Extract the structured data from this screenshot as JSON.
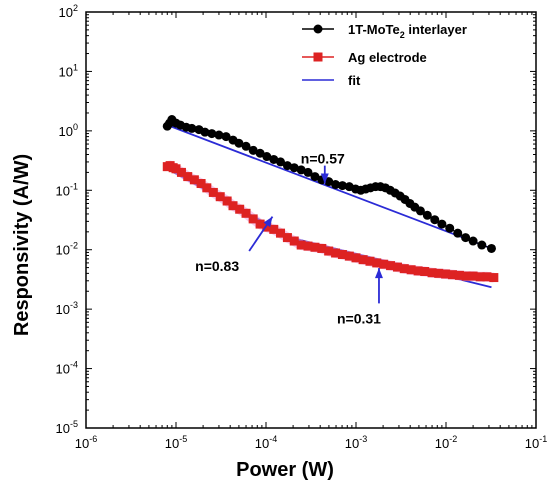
{
  "chart_data": {
    "type": "scatter",
    "title": "",
    "xlabel": "Power (W)",
    "ylabel": "Responsivity (A/W)",
    "xscale": "log",
    "yscale": "log",
    "xlim": [
      1e-06,
      0.1
    ],
    "ylim": [
      1e-05,
      100
    ],
    "x_ticks": [
      {
        "base": "10",
        "exp": "-6",
        "value": 1e-06
      },
      {
        "base": "10",
        "exp": "-5",
        "value": 1e-05
      },
      {
        "base": "10",
        "exp": "-4",
        "value": 0.0001
      },
      {
        "base": "10",
        "exp": "-3",
        "value": 0.001
      },
      {
        "base": "10",
        "exp": "-2",
        "value": 0.01
      },
      {
        "base": "10",
        "exp": "-1",
        "value": 0.1
      }
    ],
    "y_ticks": [
      {
        "base": "10",
        "exp": "-5",
        "value": 1e-05
      },
      {
        "base": "10",
        "exp": "-4",
        "value": 0.0001
      },
      {
        "base": "10",
        "exp": "-3",
        "value": 0.001
      },
      {
        "base": "10",
        "exp": "-2",
        "value": 0.01
      },
      {
        "base": "10",
        "exp": "-1",
        "value": 0.1
      },
      {
        "base": "10",
        "exp": "0",
        "value": 1
      },
      {
        "base": "10",
        "exp": "1",
        "value": 10
      },
      {
        "base": "10",
        "exp": "2",
        "value": 100
      }
    ],
    "grid": false,
    "legend_position": "top-right",
    "series": [
      {
        "name_main": "1T-MoTe",
        "name_sub": "2",
        "name_rest": " interlayer",
        "marker": "circle",
        "color": "#000000",
        "x": [
          8e-06,
          8.5e-06,
          9e-06,
          1e-05,
          1.12e-05,
          1.3e-05,
          1.5e-05,
          1.8e-05,
          2.1e-05,
          2.5e-05,
          3e-05,
          3.6e-05,
          4.3e-05,
          5e-05,
          6e-05,
          7.2e-05,
          8.6e-05,
          0.000102,
          0.000122,
          0.000145,
          0.000173,
          0.000206,
          0.000246,
          0.000293,
          0.00035,
          0.000417,
          0.000497,
          0.000593,
          0.000707,
          0.000843,
          0.00099,
          0.00113,
          0.00128,
          0.00145,
          0.00165,
          0.00187,
          0.00212,
          0.0024,
          0.00272,
          0.00309,
          0.0035,
          0.00397,
          0.0045,
          0.0052,
          0.0062,
          0.0075,
          0.009,
          0.011,
          0.0135,
          0.0165,
          0.02,
          0.025,
          0.032
        ],
        "y": [
          1.2,
          1.35,
          1.55,
          1.35,
          1.25,
          1.15,
          1.1,
          1.05,
          0.95,
          0.9,
          0.85,
          0.8,
          0.7,
          0.62,
          0.55,
          0.47,
          0.42,
          0.37,
          0.33,
          0.3,
          0.26,
          0.24,
          0.22,
          0.2,
          0.17,
          0.15,
          0.14,
          0.125,
          0.12,
          0.115,
          0.105,
          0.1,
          0.105,
          0.11,
          0.115,
          0.115,
          0.11,
          0.1,
          0.09,
          0.08,
          0.07,
          0.06,
          0.052,
          0.045,
          0.038,
          0.032,
          0.027,
          0.023,
          0.019,
          0.016,
          0.014,
          0.012,
          0.0105
        ]
      },
      {
        "name": "Ag electrode",
        "marker": "square",
        "color": "#dd2222",
        "x": [
          8e-06,
          8.6e-06,
          9.3e-06,
          1e-05,
          1.15e-05,
          1.35e-05,
          1.6e-05,
          1.9e-05,
          2.2e-05,
          2.6e-05,
          3.1e-05,
          3.7e-05,
          4.3e-05,
          5.1e-05,
          6e-05,
          7.2e-05,
          8.6e-05,
          0.000102,
          0.000122,
          0.000145,
          0.000173,
          0.000206,
          0.000246,
          0.000293,
          0.00035,
          0.000417,
          0.000497,
          0.000593,
          0.000707,
          0.000843,
          0.001,
          0.0012,
          0.00143,
          0.0017,
          0.00203,
          0.00242,
          0.00289,
          0.00344,
          0.0041,
          0.0049,
          0.0058,
          0.007,
          0.0083,
          0.0099,
          0.0118,
          0.0141,
          0.0168,
          0.02,
          0.024,
          0.0285,
          0.034
        ],
        "y": [
          0.25,
          0.26,
          0.24,
          0.23,
          0.2,
          0.17,
          0.15,
          0.13,
          0.11,
          0.092,
          0.078,
          0.066,
          0.055,
          0.048,
          0.041,
          0.033,
          0.027,
          0.024,
          0.022,
          0.019,
          0.016,
          0.014,
          0.012,
          0.0115,
          0.011,
          0.0105,
          0.0095,
          0.0088,
          0.0083,
          0.0078,
          0.0073,
          0.0068,
          0.0064,
          0.006,
          0.0057,
          0.0054,
          0.0051,
          0.0048,
          0.0046,
          0.0044,
          0.0043,
          0.0041,
          0.004,
          0.0039,
          0.0038,
          0.0037,
          0.0036,
          0.0036,
          0.0035,
          0.0035,
          0.0034
        ]
      }
    ],
    "fits": [
      {
        "name": "fit",
        "color": "#2b2bd6",
        "x": [
          8e-06,
          0.032
        ],
        "y": [
          1.25,
          0.0105
        ]
      },
      {
        "name": "fit",
        "color": "#2b2bd6",
        "x": [
          8e-06,
          0.0002
        ],
        "y": [
          0.23,
          0.0156
        ]
      },
      {
        "name": "fit",
        "color": "#2b2bd6",
        "x": [
          0.0002,
          0.032
        ],
        "y": [
          0.0156,
          0.00234
        ]
      }
    ],
    "annotations": [
      {
        "text": "n=0.57",
        "arrow_from": [
          0.00045,
          0.26
        ],
        "arrow_to": [
          0.00045,
          0.13
        ]
      },
      {
        "text": "n=0.83",
        "arrow_from": [
          6.5e-05,
          0.0095
        ],
        "arrow_to": [
          0.000118,
          0.036
        ]
      },
      {
        "text": "n=0.31",
        "arrow_from": [
          0.0018,
          0.00125
        ],
        "arrow_to": [
          0.0018,
          0.0049
        ]
      }
    ]
  }
}
